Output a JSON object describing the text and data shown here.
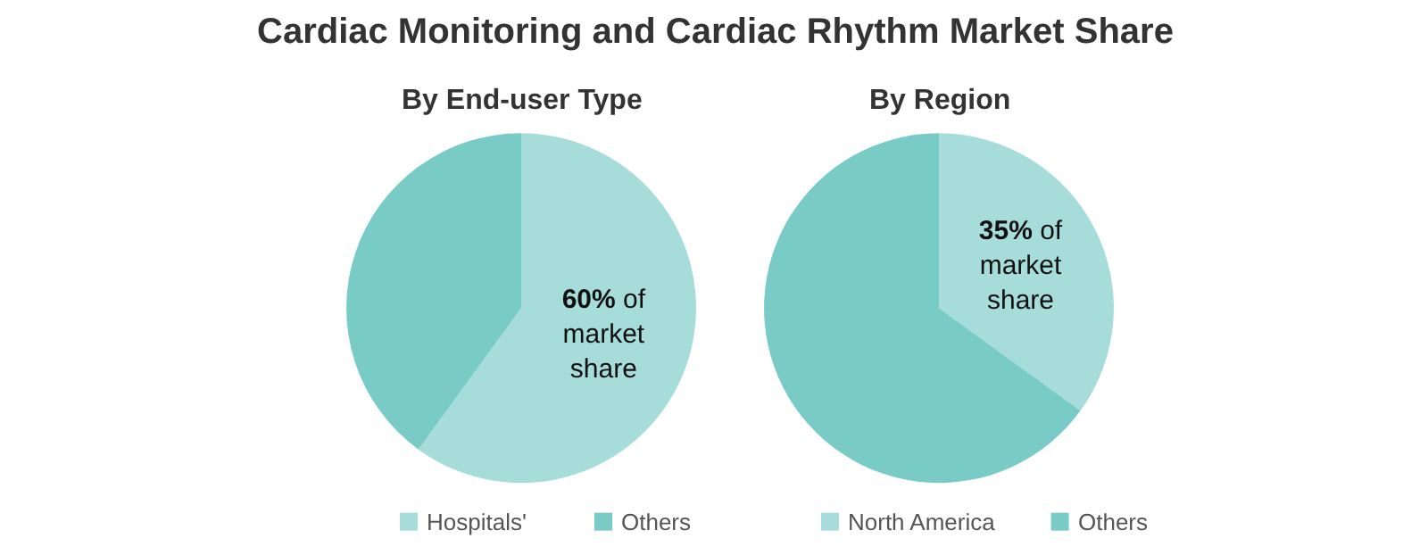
{
  "chart_data": [
    {
      "type": "pie",
      "title": "Cardiac Monitoring and Cardiac Rhythm Market Share",
      "subtitle": "By End-user Type",
      "categories": [
        "Hospitals'",
        "Others"
      ],
      "values": [
        60,
        40
      ],
      "colors": [
        "#a6dcda",
        "#79ccc6"
      ],
      "value_labels": [
        "60% of market share",
        null
      ],
      "legend": "bottom"
    },
    {
      "type": "pie",
      "subtitle": "By Region",
      "categories": [
        "North America",
        "Others"
      ],
      "values": [
        35,
        65
      ],
      "colors": [
        "#a6dcda",
        "#79ccc6"
      ],
      "value_labels": [
        "35% of market share",
        null
      ],
      "legend": "bottom"
    }
  ]
}
